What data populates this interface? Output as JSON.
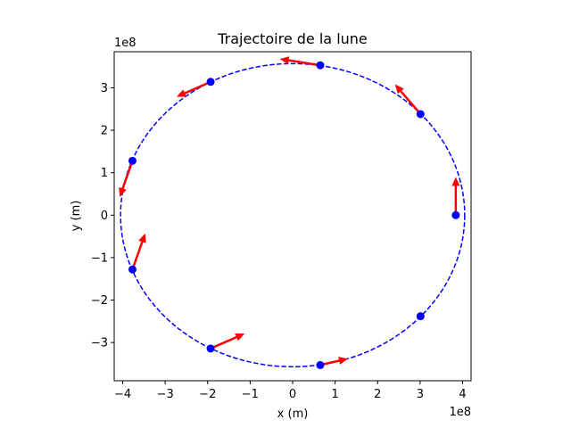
{
  "chart_data": {
    "type": "scatter",
    "title": "Trajectoire de la lune",
    "xlabel": "x (m)",
    "ylabel": "y (m)",
    "x_offset_label": "1e8",
    "y_offset_label": "1e8",
    "xlim": [
      -4.2,
      4.2
    ],
    "ylim": [
      -3.9,
      3.85
    ],
    "x_ticks": [
      -4,
      -3,
      -2,
      -1,
      0,
      1,
      2,
      3,
      4
    ],
    "y_ticks": [
      -3,
      -2,
      -1,
      0,
      1,
      2,
      3
    ],
    "x_tick_labels": [
      "−4",
      "−3",
      "−2",
      "−1",
      "0",
      "1",
      "2",
      "3",
      "4"
    ],
    "y_tick_labels": [
      "−3",
      "−2",
      "−1",
      "0",
      "1",
      "2",
      "3"
    ],
    "orbit": {
      "style": "dashed",
      "color": "#0000ff",
      "center": [
        0,
        0
      ],
      "semi_major_x": 4.05,
      "semi_minor_y": 3.57
    },
    "points": {
      "color": "#0000ff",
      "x": [
        3.84,
        3.01,
        0.65,
        -1.93,
        -3.77,
        -3.77,
        -1.93,
        0.65,
        3.01
      ],
      "y": [
        0.0,
        2.38,
        3.53,
        3.14,
        1.28,
        -1.28,
        -3.14,
        -3.53,
        -2.38
      ]
    },
    "velocity_arrows": {
      "color": "#ff0000",
      "dx": [
        0.0,
        -0.6,
        -0.95,
        -0.8,
        -0.3,
        0.3,
        0.8,
        0.65,
        0.0
      ],
      "dy": [
        0.9,
        0.7,
        0.15,
        -0.35,
        -0.85,
        0.85,
        0.35,
        0.15,
        0.0
      ]
    },
    "grid": false,
    "aspect": "equal"
  }
}
